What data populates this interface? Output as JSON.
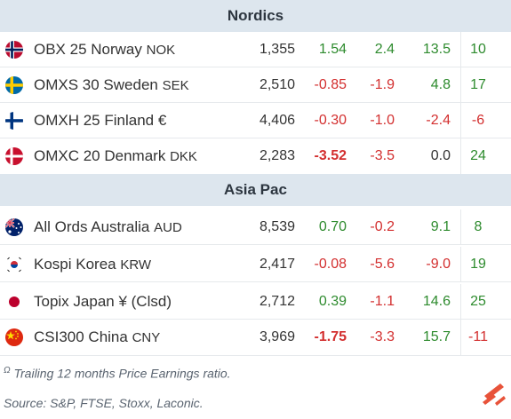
{
  "sections": [
    {
      "title": "Nordics",
      "rows": [
        {
          "flag": "norway-flag-icon",
          "name": "OBX 25 Norway",
          "currency": "NOK",
          "last": "1,355",
          "day": "1.54",
          "ytd1": "2.4",
          "ytd2": "13.5",
          "pe": "10"
        },
        {
          "flag": "sweden-flag-icon",
          "name": "OMXS 30 Sweden",
          "currency": "SEK",
          "last": "2,510",
          "day": "-0.85",
          "ytd1": "-1.9",
          "ytd2": "4.8",
          "pe": "17"
        },
        {
          "flag": "finland-flag-icon",
          "name": "OMXH 25 Finland",
          "currency": "€",
          "last": "4,406",
          "day": "-0.30",
          "ytd1": "-1.0",
          "ytd2": "-2.4",
          "pe": "-6"
        },
        {
          "flag": "denmark-flag-icon",
          "name": "OMXC 20 Denmark",
          "currency": "DKK",
          "last": "2,283",
          "day": "-3.52",
          "ytd1": "-3.5",
          "ytd2": "0.0",
          "pe": "24"
        }
      ]
    },
    {
      "title": "Asia Pac",
      "rows": [
        {
          "flag": "australia-flag-icon",
          "name": "All Ords Australia",
          "currency": "AUD",
          "last": "8,539",
          "day": "0.70",
          "ytd1": "-0.2",
          "ytd2": "9.1",
          "pe": "8"
        },
        {
          "flag": "korea-flag-icon",
          "name": "Kospi Korea",
          "currency": "KRW",
          "last": "2,417",
          "day": "-0.08",
          "ytd1": "-5.6",
          "ytd2": "-9.0",
          "pe": "19"
        },
        {
          "flag": "japan-flag-icon",
          "name": "Topix Japan",
          "currency": "¥ (Clsd)",
          "last": "2,712",
          "day": "0.39",
          "ytd1": "-1.1",
          "ytd2": "14.6",
          "pe": "25"
        },
        {
          "flag": "china-flag-icon",
          "name": "CSI300 China",
          "currency": "CNY",
          "last": "3,969",
          "day": "-1.75",
          "ytd1": "-3.3",
          "ytd2": "15.7",
          "pe": "-11"
        }
      ]
    }
  ],
  "footer": {
    "footnote_marker": "Ω",
    "footnote": "Trailing 12 months Price Earnings ratio.",
    "source": "Source: S&P, FTSE, Stoxx, Laconic.",
    "logo": "laconic-logo-icon"
  },
  "colors": {
    "positive": "#2e8b2e",
    "negative": "#d32f2f",
    "header_bg": "#dde6ee",
    "logo": "#e8533a"
  }
}
